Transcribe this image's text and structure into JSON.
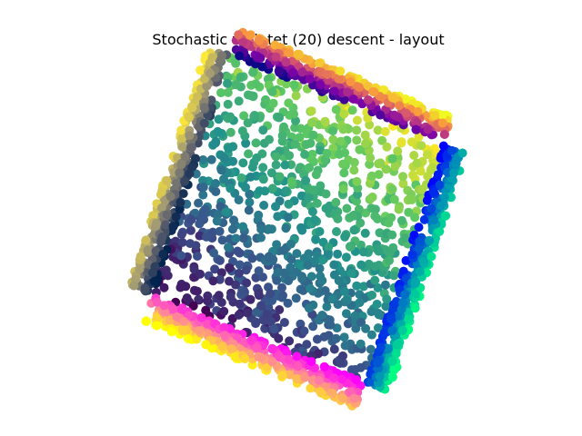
{
  "chart_data": {
    "type": "scatter",
    "title": "Stochastic vigintet (20) descent - layout",
    "axes_visible": false,
    "grid": false,
    "legend": "none",
    "xlim": [
      -5.2,
      5.2
    ],
    "ylim": [
      -3.4,
      3.4
    ],
    "description_of_structure": {
      "interior": {
        "extent": {
          "x": [
            -2.6,
            2.6
          ],
          "y": [
            -2.6,
            2.6
          ]
        },
        "rotation_deg": -20,
        "colormap": "viridis",
        "colormap_stops": [
          "#440154",
          "#3b528b",
          "#21918c",
          "#5ec962",
          "#fde725"
        ]
      },
      "frames": [
        {
          "name": "top",
          "from": [
            -2.6,
            2.9
          ],
          "to": [
            2.6,
            2.9
          ],
          "colormap": "plasma",
          "stops": [
            "#0d0887",
            "#7e03a8",
            "#cc4778",
            "#f89540",
            "#f0f921"
          ]
        },
        {
          "name": "right",
          "from": [
            2.9,
            2.6
          ],
          "to": [
            2.9,
            -2.6
          ],
          "colormap": "winter",
          "stops": [
            "#0000ff",
            "#0080bf",
            "#00ff80"
          ]
        },
        {
          "name": "bottom",
          "from": [
            2.6,
            -2.9
          ],
          "to": [
            -2.6,
            -2.9
          ],
          "colormap": "spring",
          "stops": [
            "#ff00ff",
            "#ff80a0",
            "#ffff00"
          ]
        },
        {
          "name": "left",
          "from": [
            -2.9,
            -2.6
          ],
          "to": [
            -2.9,
            2.6
          ],
          "colormap": "cividis",
          "stops": [
            "#00224e",
            "#575c6d",
            "#a59c74",
            "#fee838"
          ]
        }
      ]
    },
    "point_counts": {
      "interior": 900,
      "frame_each": 320
    }
  }
}
